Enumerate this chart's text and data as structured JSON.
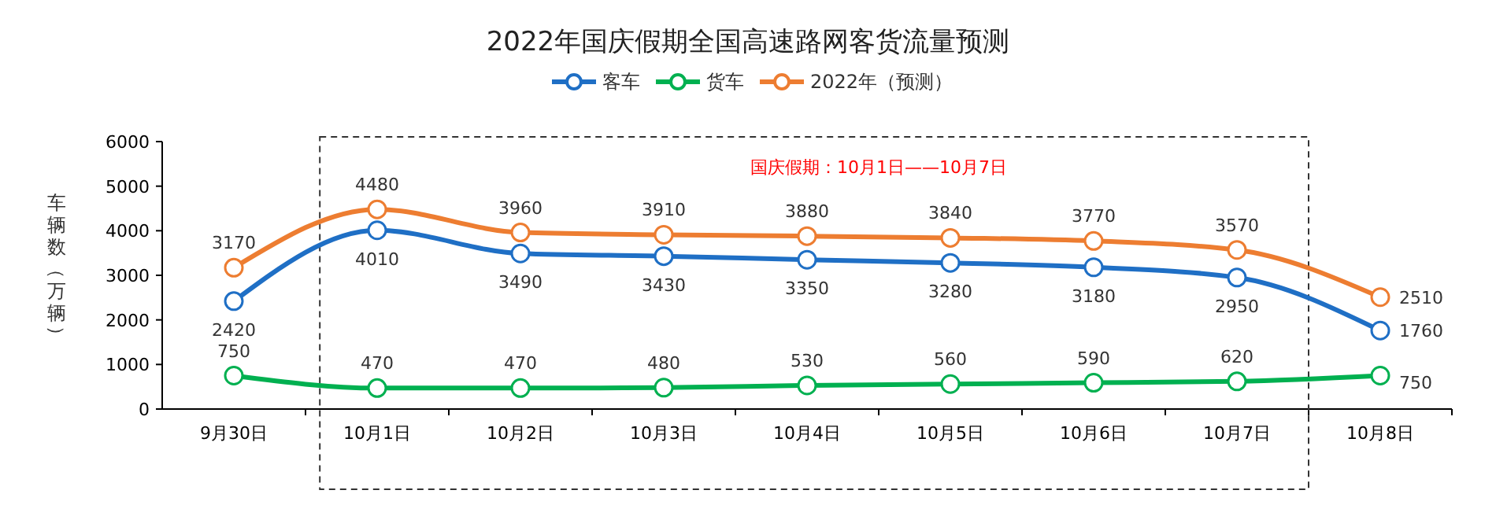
{
  "chart_data": {
    "type": "line",
    "title": "2022年国庆假期全国高速路网客货流量预测",
    "ylabel": "车辆数（万辆）",
    "categories": [
      "9月30日",
      "10月1日",
      "10月2日",
      "10月3日",
      "10月4日",
      "10月5日",
      "10月6日",
      "10月7日",
      "10月8日"
    ],
    "series": [
      {
        "name": "客车",
        "color": "#1f6fc5",
        "values": [
          2420,
          4010,
          3490,
          3430,
          3350,
          3280,
          3180,
          2950,
          1760
        ]
      },
      {
        "name": "货车",
        "color": "#00b050",
        "values": [
          750,
          470,
          470,
          480,
          530,
          560,
          590,
          620,
          750
        ]
      },
      {
        "name": "2022年（预测）",
        "color": "#ed7d31",
        "values": [
          3170,
          4480,
          3960,
          3910,
          3880,
          3840,
          3770,
          3570,
          2510
        ]
      }
    ],
    "ylim": [
      0,
      6000
    ],
    "yticks": [
      0,
      1000,
      2000,
      3000,
      4000,
      5000,
      6000
    ],
    "annotations": [
      "国庆假期：10月1日——10月7日"
    ],
    "data_labels": true,
    "legend": "top",
    "marker": "circle",
    "line_style": "solid",
    "grid": false
  }
}
